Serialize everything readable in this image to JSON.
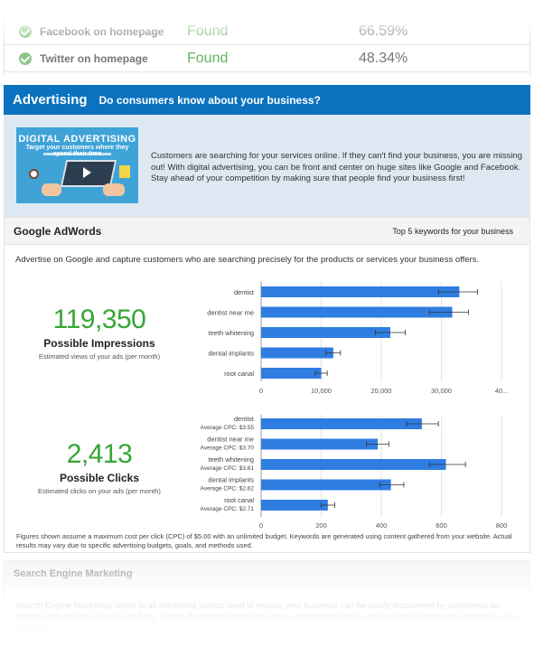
{
  "social": [
    {
      "label": "Facebook on homepage",
      "status": "Found",
      "percent": "66.59%"
    },
    {
      "label": "Twitter on homepage",
      "status": "Found",
      "percent": "48.34%"
    }
  ],
  "advertising": {
    "title": "Advertising",
    "question": "Do consumers know about your business?",
    "image_heading": "DIGITAL ADVERTISING",
    "image_sub": "Target your customers where they spend their time",
    "intro": "Customers are searching for your services online. If they can't find your business, you are missing out! With digital advertising, you can be front and center on huge sites like Google and Facebook. Stay ahead of your competition by making sure that people find your business first!"
  },
  "adwords": {
    "title": "Google AdWords",
    "subtitle": "Top 5 keywords for your business",
    "description": "Advertise on Google and capture customers who are searching precisely for the products or services your business offers.",
    "impressions": {
      "value": "119,350",
      "label": "Possible Impressions",
      "sub": "Estimated views of your ads (per month)"
    },
    "clicks": {
      "value": "2,413",
      "label": "Possible Clicks",
      "sub": "Estimated clicks on your ads (per month)"
    },
    "footnote": "Figures shown assume a maximum cost per click (CPC) of $5.00 with an unlimited budget. Keywords are generated using content gathered from your website. Actual results may vary due to specific advertising budgets, goals, and methods used."
  },
  "chart_data": [
    {
      "type": "bar",
      "orientation": "horizontal",
      "categories": [
        "dentist",
        "dentist near me",
        "teeth whitening",
        "dental implants",
        "root canal"
      ],
      "values": [
        33000,
        31800,
        21500,
        12000,
        10000
      ],
      "error_low": [
        29500,
        28000,
        19000,
        10800,
        9000
      ],
      "error_high": [
        36000,
        34500,
        24000,
        13200,
        11000
      ],
      "xlim": [
        0,
        40000
      ],
      "ticks": [
        "0",
        "10,000",
        "20,000",
        "30,000",
        "40..."
      ],
      "bar_color": "#2f7de1",
      "grid": true
    },
    {
      "type": "bar",
      "orientation": "horizontal",
      "categories": [
        "dentist",
        "dentist near me",
        "teeth whitening",
        "dental implants",
        "root canal"
      ],
      "cpc_labels": [
        "Average CPC: $3.55",
        "Average CPC: $3.70",
        "Average CPC: $3.81",
        "Average CPC: $2.62",
        "Average CPC: $2.71"
      ],
      "values": [
        535,
        388,
        615,
        432,
        222
      ],
      "error_low": [
        485,
        350,
        560,
        395,
        200
      ],
      "error_high": [
        590,
        425,
        680,
        475,
        245
      ],
      "xlim": [
        0,
        800
      ],
      "ticks": [
        "0",
        "200",
        "400",
        "600",
        "800"
      ],
      "bar_color": "#2f7de1",
      "grid": true
    }
  ],
  "sem": {
    "title": "Search Engine Marketing",
    "text": "Search Engine Marketing refers to all marketing tactics used to ensure your business can be easily discovered by customers on search engines like Google and Bing. Below, the graph shows how your competitors rank in paid results for keywords related to your business."
  }
}
